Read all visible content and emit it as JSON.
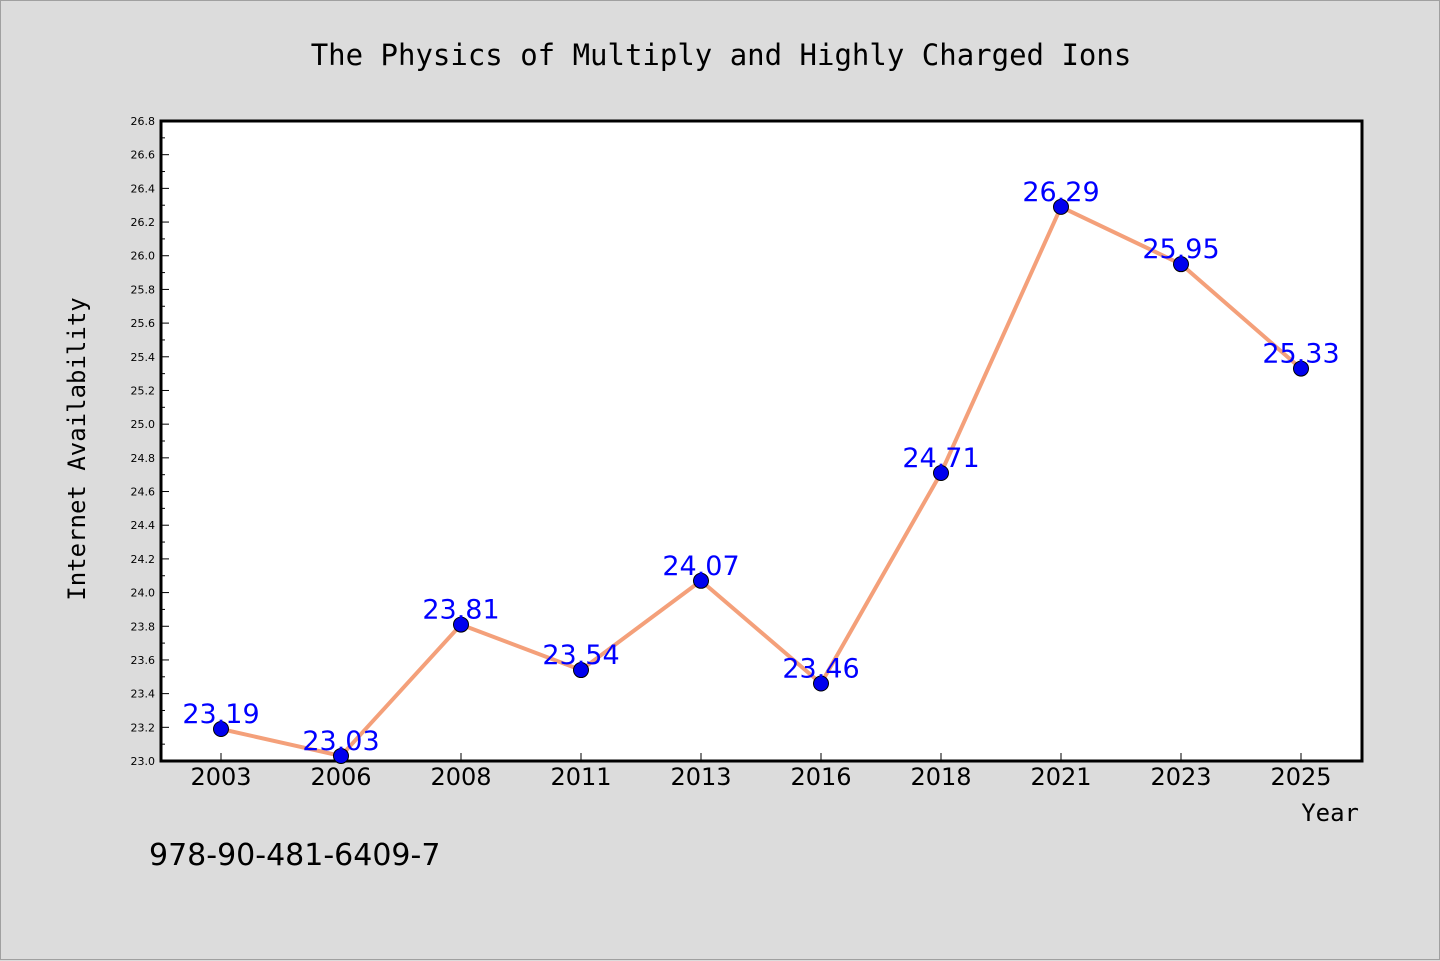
{
  "chart_data": {
    "type": "line",
    "title": "The Physics of Multiply and Highly Charged Ions",
    "xlabel": "Year",
    "ylabel": "Internet Availability",
    "categories": [
      "2003",
      "2006",
      "2008",
      "2011",
      "2013",
      "2016",
      "2018",
      "2021",
      "2023",
      "2025"
    ],
    "series": [
      {
        "values": [
          23.19,
          23.03,
          23.81,
          23.54,
          24.07,
          23.46,
          24.71,
          26.29,
          25.95,
          25.33
        ],
        "data_labels": [
          "23.19",
          "23.03",
          "23.81",
          "23.54",
          "24.07",
          "23.46",
          "24.71",
          "26.29",
          "25.95",
          "25.33"
        ],
        "line_color": "#f4a07a",
        "marker_color": "#0000ee"
      }
    ],
    "ylim": [
      23.0,
      26.8
    ],
    "yticks": [
      "23.0",
      "23.2",
      "23.4",
      "23.6",
      "23.8",
      "24.0",
      "24.2",
      "24.4",
      "24.6",
      "24.8",
      "25.0",
      "25.2",
      "25.4",
      "25.6",
      "25.8",
      "26.0",
      "26.2",
      "26.4",
      "26.6",
      "26.8"
    ],
    "grid": false,
    "legend": "none",
    "label_color": "#0000ff",
    "background": "#dcdcdc",
    "plot_background": "#ffffff"
  },
  "footer": {
    "isbn": "978-90-481-6409-7"
  }
}
